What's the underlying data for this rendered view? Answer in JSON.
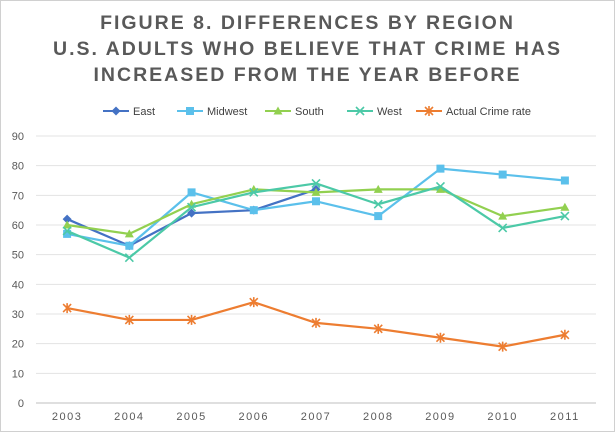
{
  "chart_data": {
    "type": "line",
    "title_lines": [
      "FIGURE 8. DIFFERENCES BY REGION",
      "U.S. ADULTS WHO BELIEVE THAT CRIME HAS",
      "INCREASED FROM THE YEAR BEFORE"
    ],
    "x": [
      "2003",
      "2004",
      "2005",
      "2006",
      "2007",
      "2008",
      "2009",
      "2010",
      "2011"
    ],
    "ylim": [
      0,
      90
    ],
    "yticks": [
      0,
      10,
      20,
      30,
      40,
      50,
      60,
      70,
      80,
      90
    ],
    "grid": true,
    "legend_position": "top",
    "series": [
      {
        "name": "East",
        "color": "#4472C4",
        "marker": "diamond",
        "values": [
          62,
          53,
          64,
          65,
          72,
          null,
          null,
          null,
          null
        ]
      },
      {
        "name": "Midwest",
        "color": "#5BC0EB",
        "marker": "square",
        "values": [
          57,
          53,
          71,
          65,
          68,
          63,
          79,
          77,
          75
        ]
      },
      {
        "name": "South",
        "color": "#92D050",
        "marker": "triangle",
        "values": [
          60,
          57,
          67,
          72,
          71,
          72,
          72,
          63,
          66
        ]
      },
      {
        "name": "West",
        "color": "#4CC9A7",
        "marker": "x",
        "values": [
          58,
          49,
          66,
          71,
          74,
          67,
          73,
          59,
          63
        ]
      },
      {
        "name": "Actual Crime rate",
        "color": "#ED7D31",
        "marker": "star",
        "values": [
          32,
          28,
          28,
          34,
          27,
          25,
          22,
          19,
          23
        ]
      }
    ]
  }
}
